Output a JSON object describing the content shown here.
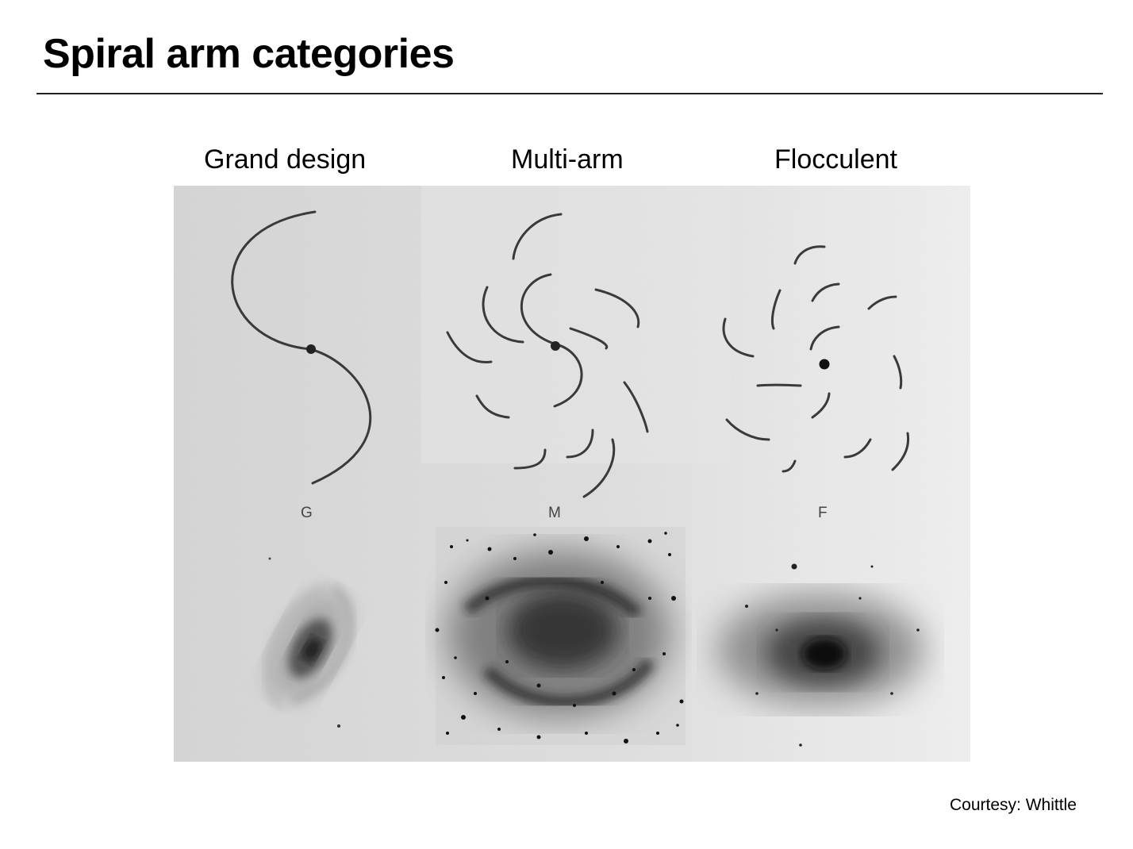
{
  "slide": {
    "title": "Spiral arm categories",
    "columns": [
      {
        "label": "Grand design",
        "letter": "G"
      },
      {
        "label": "Multi-arm",
        "letter": "M"
      },
      {
        "label": "Flocculent",
        "letter": "F"
      }
    ],
    "credit": "Courtesy: Whittle"
  },
  "colors": {
    "text": "#000000",
    "figure_background": "#dcdcdc",
    "ink": "#333333"
  }
}
